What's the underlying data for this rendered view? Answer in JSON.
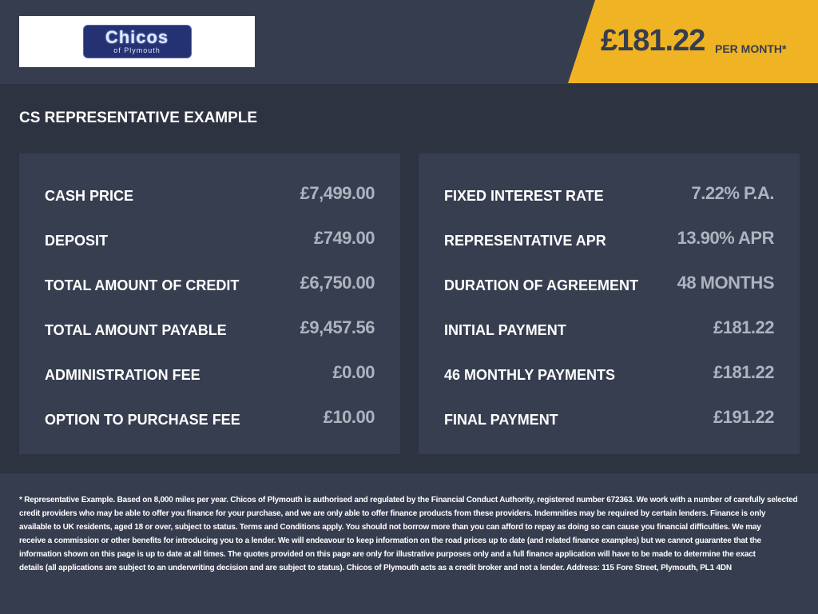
{
  "header": {
    "logo_text": "Chicos",
    "logo_subtext": "of Plymouth",
    "price": "£181.22",
    "per_month": "PER MONTH*",
    "accent": "#f0b323"
  },
  "title": "CS REPRESENTATIVE EXAMPLE",
  "left": [
    {
      "label": "CASH PRICE",
      "value": "£7,499.00"
    },
    {
      "label": "DEPOSIT",
      "value": "£749.00"
    },
    {
      "label": "TOTAL AMOUNT OF CREDIT",
      "value": "£6,750.00"
    },
    {
      "label": "TOTAL AMOUNT PAYABLE",
      "value": "£9,457.56"
    },
    {
      "label": "ADMINISTRATION FEE",
      "value": "£0.00"
    },
    {
      "label": "OPTION TO PURCHASE FEE",
      "value": "£10.00"
    }
  ],
  "right": [
    {
      "label": "FIXED INTEREST RATE",
      "value": "7.22% P.A."
    },
    {
      "label": "REPRESENTATIVE APR",
      "value": "13.90% APR"
    },
    {
      "label": "DURATION OF AGREEMENT",
      "value": "48 MONTHS"
    },
    {
      "label": "INITIAL PAYMENT",
      "value": "£181.22"
    },
    {
      "label": "46 MONTHLY PAYMENTS",
      "value": "£181.22"
    },
    {
      "label": "FINAL PAYMENT",
      "value": "£191.22"
    }
  ],
  "footer": [
    "* Representative Example. Based on 8,000 miles per year. Chicos of Plymouth is authorised and regulated by the Financial Conduct Authority, registered number 672363. We work with a number of carefully selected",
    "credit providers who may be able to offer you finance for your purchase, and we are only able to offer finance products from these providers. Indemnities may be required by certain lenders. Finance is only",
    "available to UK residents, aged 18 or over, subject to status. Terms and Conditions apply. You should not borrow more than you can afford to repay as doing so can cause you financial difficulties. We may",
    "receive a commission or other benefits for introducing you to a lender. We will endeavour to keep information on the road prices up to date (and related finance examples) but we cannot guarantee that the",
    "information shown on this page is up to date at all times. The quotes provided on this page are only for illustrative purposes only and a full finance application will have to be made to determine the exact",
    "details (all applications are subject to an underwriting decision and are subject to status). Chicos of Plymouth acts as a credit broker and not a lender. Address: 115 Fore Street, Plymouth, PL1 4DN"
  ]
}
